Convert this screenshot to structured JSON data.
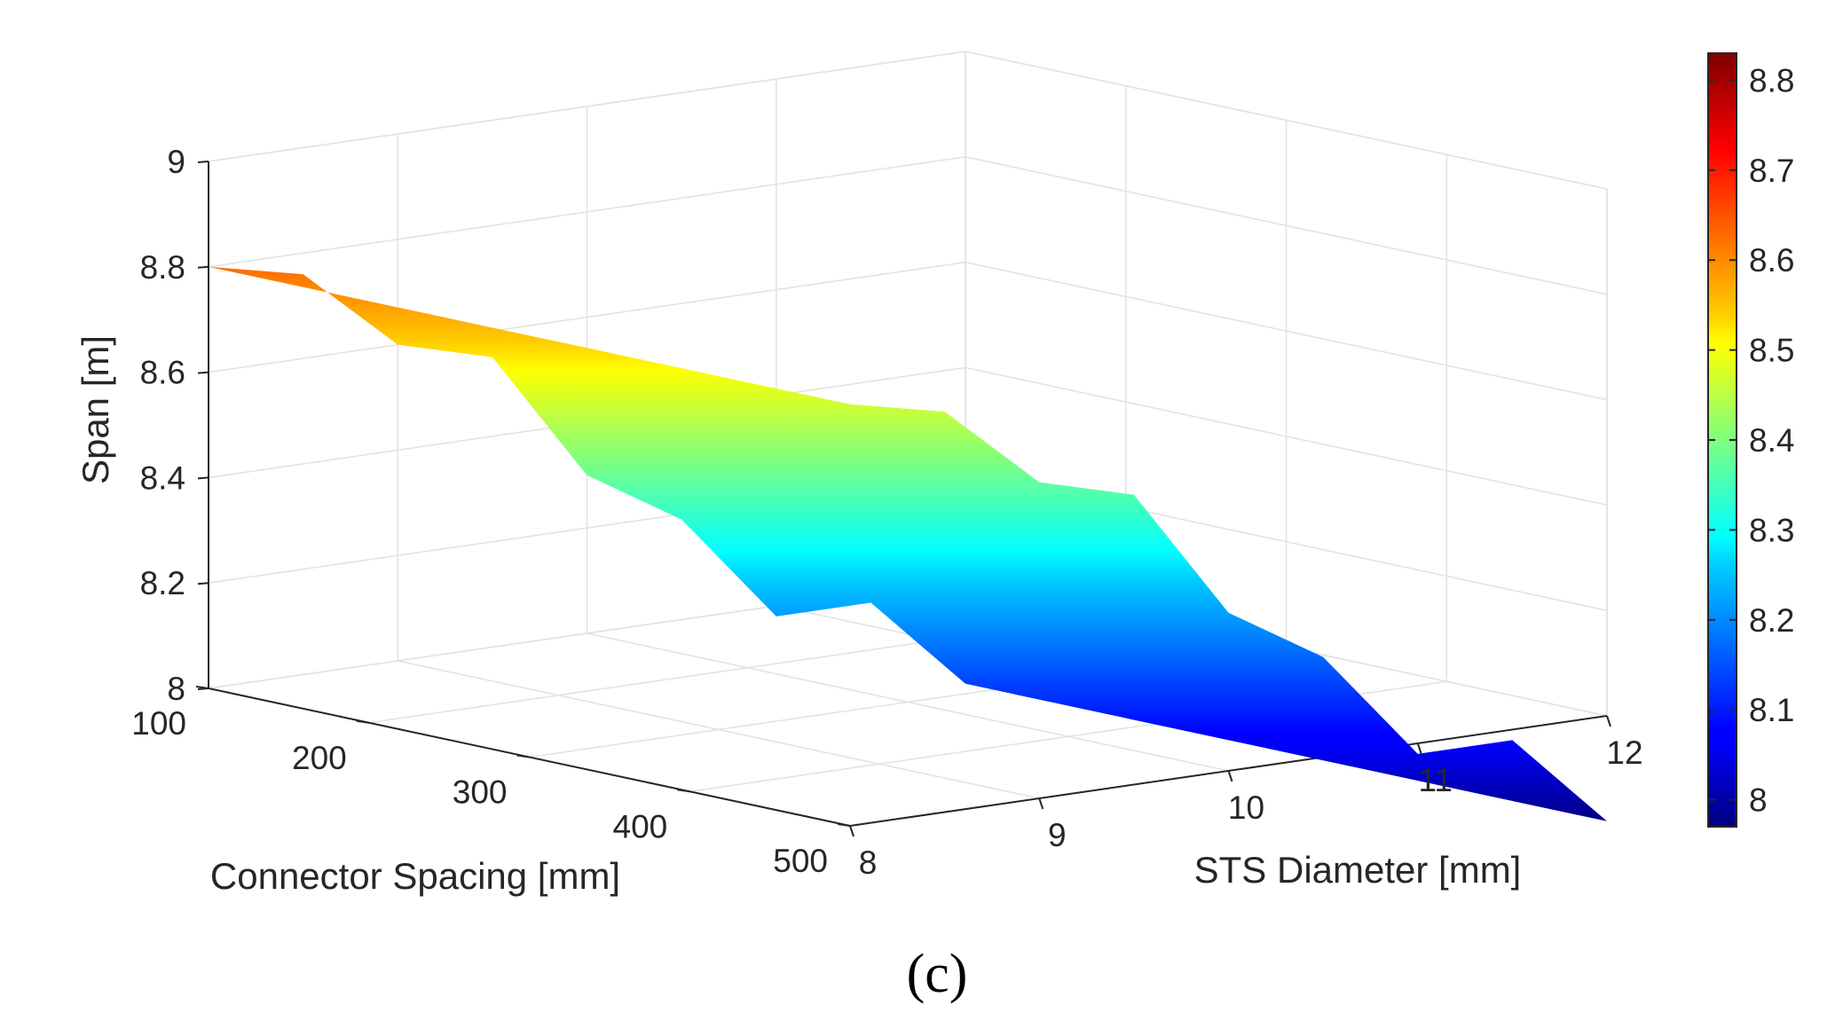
{
  "chart_data": {
    "type": "surface",
    "caption": "(c)",
    "zlabel": "Span [m]",
    "xlabel": "Connector Spacing [mm]",
    "ylabel": "STS Diameter [mm]",
    "x_ticks": [
      "100",
      "200",
      "300",
      "400",
      "500"
    ],
    "y_ticks": [
      "8",
      "9",
      "10",
      "11",
      "12"
    ],
    "z_ticks": [
      "8",
      "8.2",
      "8.4",
      "8.6",
      "8.8",
      "9"
    ],
    "xlim": [
      100,
      500
    ],
    "ylim": [
      8,
      12
    ],
    "zlim": [
      8,
      9
    ],
    "surface_profile": {
      "description_axis": "STS Diameter [mm]",
      "diameter": [
        8,
        8.5,
        9,
        9.5,
        10,
        10.5,
        11,
        11.5,
        12
      ],
      "span": [
        8.8,
        8.76,
        8.6,
        8.55,
        8.3,
        8.19,
        7.98,
        7.98,
        7.8
      ]
    },
    "colorbar": {
      "colormap": "jet",
      "ticks": [
        "8",
        "8.1",
        "8.2",
        "8.3",
        "8.4",
        "8.5",
        "8.6",
        "8.7",
        "8.8"
      ],
      "range": [
        7.97,
        8.83
      ]
    }
  }
}
